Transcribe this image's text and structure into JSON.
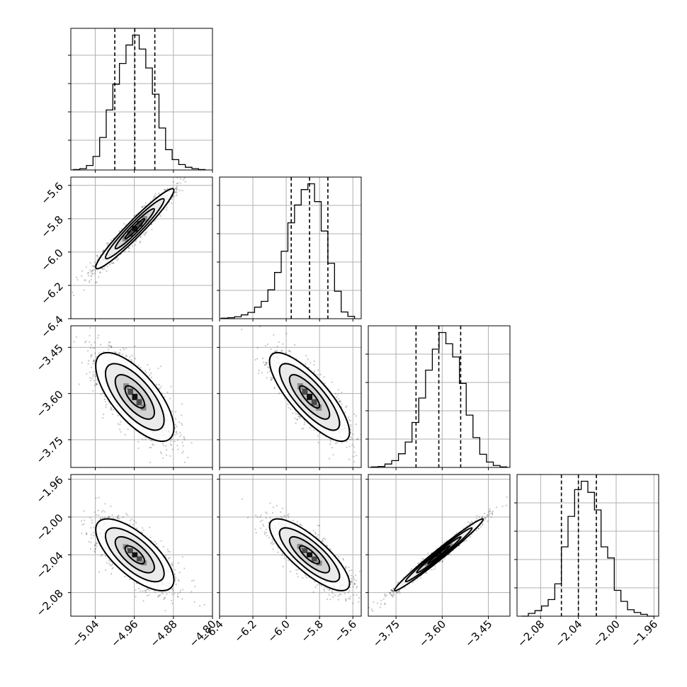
{
  "chart_data": {
    "type": "corner",
    "parameters": [
      {
        "ticks": [
          -5.04,
          -4.96,
          -4.88,
          -4.8
        ],
        "tick_labels": [
          "−5.04",
          "−4.96",
          "−4.88",
          "−4.80"
        ],
        "range": [
          -5.09,
          -4.8
        ]
      },
      {
        "ticks": [
          -6.4,
          -6.2,
          -6.0,
          -5.8,
          -5.6
        ],
        "tick_labels": [
          "−6.4",
          "−6.2",
          "−6.0",
          "−5.8",
          "−5.6"
        ],
        "range": [
          -6.4,
          -5.55
        ]
      },
      {
        "ticks": [
          -3.75,
          -3.6,
          -3.45
        ],
        "tick_labels": [
          "−3.75",
          "−3.60",
          "−3.45"
        ],
        "range": [
          -3.84,
          -3.38
        ]
      },
      {
        "ticks": [
          -2.08,
          -2.04,
          -2.0,
          -1.96
        ],
        "tick_labels": [
          "−2.08",
          "−2.04",
          "−2.00",
          "−1.96"
        ],
        "range": [
          -2.105,
          -1.955
        ]
      }
    ],
    "marginals": [
      {
        "parameter": 0,
        "bin_edges": [
          -5.085,
          -5.0715,
          -5.058,
          -5.0445,
          -5.031,
          -5.0175,
          -5.004,
          -4.9905,
          -4.977,
          -4.9635,
          -4.95,
          -4.9365,
          -4.923,
          -4.9095,
          -4.896,
          -4.8825,
          -4.869,
          -4.8555,
          -4.842,
          -4.8285,
          -4.815
        ],
        "counts": [
          1,
          3,
          10,
          30,
          72,
          133,
          190,
          236,
          277,
          299,
          268,
          226,
          168,
          93,
          45,
          23,
          12,
          6,
          3,
          1
        ],
        "quantiles": [
          -5.0,
          -4.959,
          -4.918
        ]
      },
      {
        "parameter": 1,
        "bin_edges": [
          -6.39,
          -6.35,
          -6.31,
          -6.27,
          -6.23,
          -6.19,
          -6.15,
          -6.11,
          -6.07,
          -6.03,
          -5.99,
          -5.95,
          -5.91,
          -5.87,
          -5.83,
          -5.79,
          -5.75,
          -5.71,
          -5.67,
          -5.63,
          -5.59
        ],
        "counts": [
          1,
          2,
          4,
          8,
          13,
          24,
          36,
          60,
          96,
          140,
          199,
          236,
          268,
          280,
          243,
          182,
          115,
          57,
          14,
          5
        ],
        "quantiles": [
          -5.97,
          -5.86,
          -5.75
        ]
      },
      {
        "parameter": 2,
        "bin_edges": [
          -3.83,
          -3.808,
          -3.786,
          -3.764,
          -3.742,
          -3.72,
          -3.698,
          -3.676,
          -3.654,
          -3.632,
          -3.61,
          -3.588,
          -3.566,
          -3.544,
          -3.522,
          -3.5,
          -3.478,
          -3.456,
          -3.434,
          -3.412,
          -3.39
        ],
        "counts": [
          1,
          2,
          7,
          14,
          28,
          52,
          92,
          142,
          199,
          242,
          276,
          253,
          226,
          172,
          107,
          61,
          27,
          11,
          4,
          1
        ],
        "quantiles": [
          -3.685,
          -3.611,
          -3.54
        ]
      },
      {
        "parameter": 3,
        "bin_edges": [
          -2.1,
          -2.093,
          -2.086,
          -2.079,
          -2.072,
          -2.065,
          -2.058,
          -2.051,
          -2.044,
          -2.037,
          -2.03,
          -2.023,
          -2.016,
          -2.009,
          -2.002,
          -1.995,
          -1.988,
          -1.981,
          -1.974,
          -1.967,
          -1.96
        ],
        "counts": [
          0,
          3,
          6,
          11,
          18,
          35,
          75,
          108,
          137,
          146,
          134,
          115,
          75,
          63,
          28,
          16,
          7,
          4,
          2,
          0
        ],
        "quantiles": [
          -2.058,
          -2.04,
          -2.021
        ]
      }
    ],
    "joint_distributions": [
      {
        "row": 1,
        "col": 0,
        "mean": [
          -4.959,
          -5.86
        ],
        "sd": [
          0.04,
          0.12
        ],
        "correlation": 0.96
      },
      {
        "row": 2,
        "col": 0,
        "mean": [
          -4.959,
          -3.611
        ],
        "sd": [
          0.04,
          0.072
        ],
        "correlation": -0.7
      },
      {
        "row": 2,
        "col": 1,
        "mean": [
          -5.86,
          -3.611
        ],
        "sd": [
          0.12,
          0.072
        ],
        "correlation": -0.8
      },
      {
        "row": 3,
        "col": 0,
        "mean": [
          -4.959,
          -2.04
        ],
        "sd": [
          0.04,
          0.019
        ],
        "correlation": -0.7
      },
      {
        "row": 3,
        "col": 1,
        "mean": [
          -5.86,
          -2.04
        ],
        "sd": [
          0.12,
          0.019
        ],
        "correlation": -0.8
      },
      {
        "row": 3,
        "col": 2,
        "mean": [
          -3.611,
          -2.04
        ],
        "sd": [
          0.072,
          0.019
        ],
        "correlation": 0.985
      }
    ],
    "contour_levels_sigma": [
      0.5,
      1.0,
      1.5,
      2.0
    ],
    "grid": true,
    "xlabel": "",
    "ylabel": "",
    "title": ""
  }
}
